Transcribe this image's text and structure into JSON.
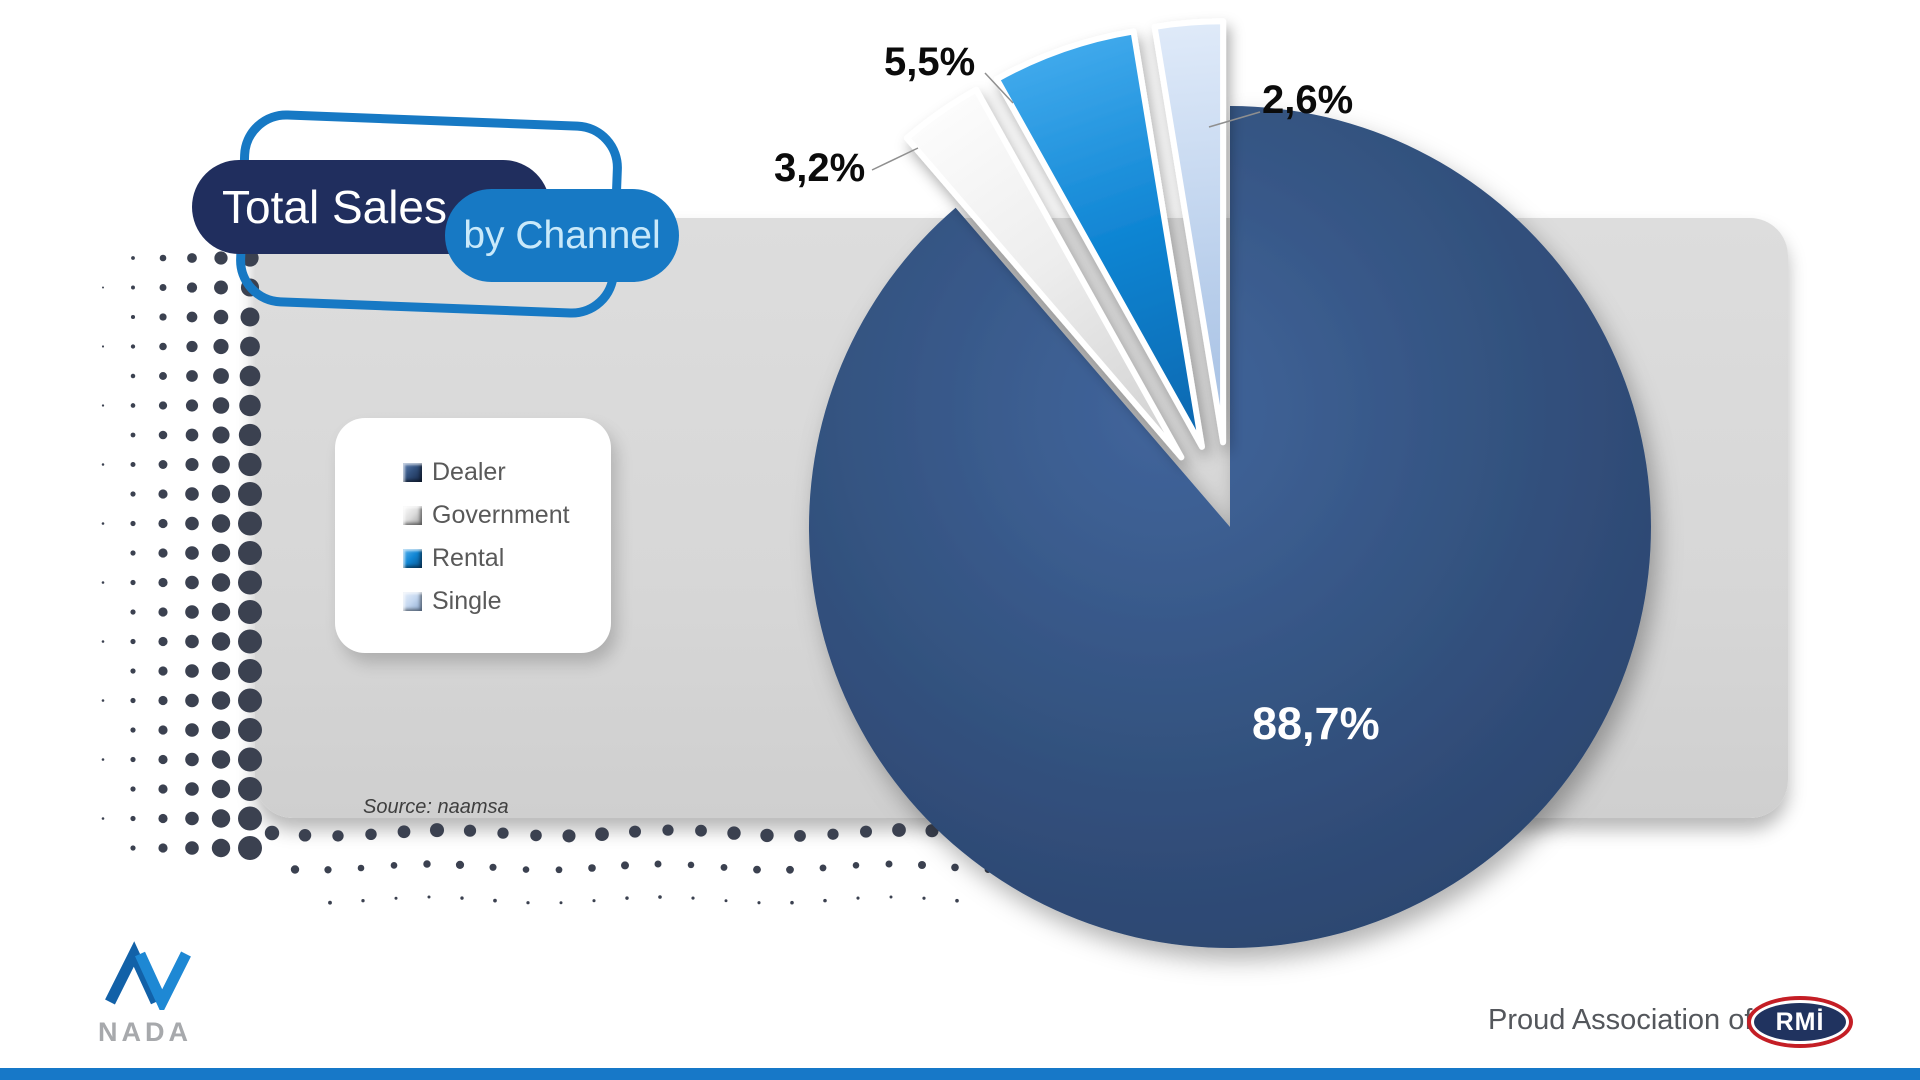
{
  "title": {
    "primary": "Total Sales",
    "secondary": "by Channel"
  },
  "legend": {
    "items": [
      {
        "label": "Dealer"
      },
      {
        "label": "Government"
      },
      {
        "label": "Rental"
      },
      {
        "label": "Single"
      }
    ]
  },
  "chart_data": {
    "type": "pie",
    "title": "Total Sales by Channel",
    "value_format": "percent, comma decimal separator",
    "legend_position": "left",
    "slices": [
      {
        "label": "Dealer",
        "value": 88.7,
        "display": "88,7%",
        "color": "#33527F",
        "color_light": "#41659C",
        "color_dark": "#2A436C",
        "exploded": false
      },
      {
        "label": "Government",
        "value": 3.2,
        "display": "3,2%",
        "color": "#EDEDED",
        "color_light": "#FCFCFC",
        "color_dark": "#CFCFCF",
        "exploded": true
      },
      {
        "label": "Rental",
        "value": 5.5,
        "display": "5,5%",
        "color": "#1186D4",
        "color_light": "#3FA9EC",
        "color_dark": "#0B66AE",
        "exploded": true
      },
      {
        "label": "Single",
        "value": 2.6,
        "display": "2,6%",
        "color": "#C3D6EF",
        "color_light": "#DFEAF9",
        "color_dark": "#A3BEE2",
        "exploded": true
      }
    ]
  },
  "source": {
    "text": "Source: naamsa"
  },
  "footer": {
    "nada_label": "NADA",
    "association_text": "Proud Association of",
    "rmi_label": "RMİ"
  },
  "colors": {
    "brand_navy": "#202E5E",
    "brand_blue": "#1779C4",
    "pale_blue_text": "#C9E9FA",
    "dealer": "#33527F",
    "government": "#EDEDED",
    "rental": "#1186D4",
    "single": "#C3D6EF",
    "panel_gray": "#D9D9D9",
    "dot_slate": "#3B4150",
    "legend_text": "#595959",
    "proud_text": "#54575C",
    "nada_gray": "#A7A9AC",
    "rmi_red": "#C41E25",
    "rmi_navy": "#20335F",
    "footer_bar": "#1778C8"
  }
}
